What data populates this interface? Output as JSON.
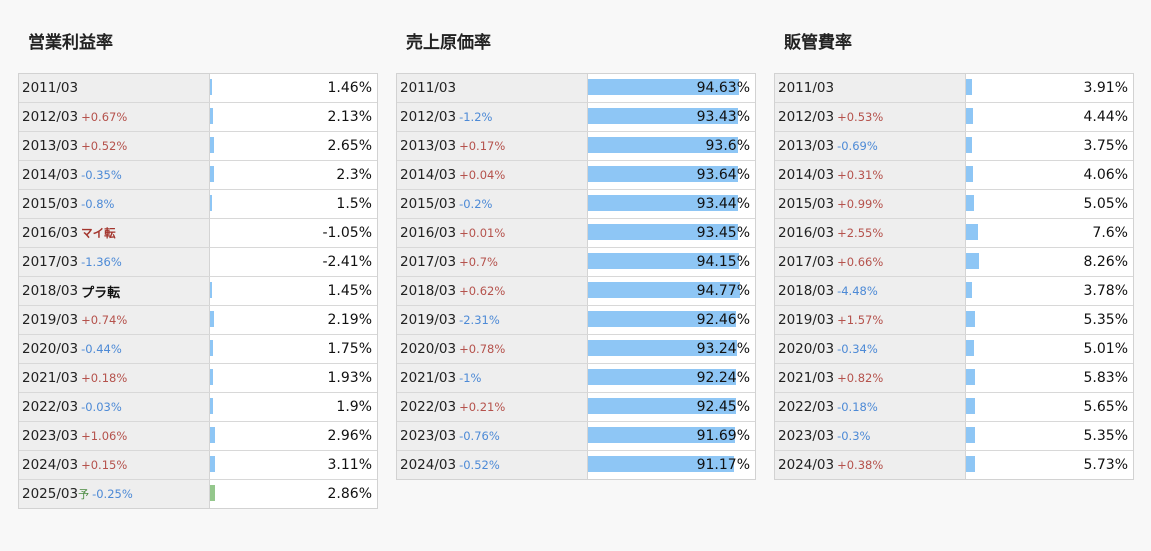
{
  "panels": [
    {
      "title": "営業利益率",
      "rows": [
        {
          "year": "2011/03",
          "change": "",
          "value": "1.46%",
          "ratio": 1.46
        },
        {
          "year": "2012/03",
          "change": "+0.67%",
          "value": "2.13%",
          "ratio": 2.13
        },
        {
          "year": "2013/03",
          "change": "+0.52%",
          "value": "2.65%",
          "ratio": 2.65
        },
        {
          "year": "2014/03",
          "change": "-0.35%",
          "value": "2.3%",
          "ratio": 2.3
        },
        {
          "year": "2015/03",
          "change": "-0.8%",
          "value": "1.5%",
          "ratio": 1.5
        },
        {
          "year": "2016/03",
          "change": "マイ転",
          "value": "-1.05%",
          "ratio": 0
        },
        {
          "year": "2017/03",
          "change": "-1.36%",
          "value": "-2.41%",
          "ratio": 0
        },
        {
          "year": "2018/03",
          "change": "プラ転",
          "value": "1.45%",
          "ratio": 1.45
        },
        {
          "year": "2019/03",
          "change": "+0.74%",
          "value": "2.19%",
          "ratio": 2.19
        },
        {
          "year": "2020/03",
          "change": "-0.44%",
          "value": "1.75%",
          "ratio": 1.75
        },
        {
          "year": "2021/03",
          "change": "+0.18%",
          "value": "1.93%",
          "ratio": 1.93
        },
        {
          "year": "2022/03",
          "change": "-0.03%",
          "value": "1.9%",
          "ratio": 1.9
        },
        {
          "year": "2023/03",
          "change": "+1.06%",
          "value": "2.96%",
          "ratio": 2.96
        },
        {
          "year": "2024/03",
          "change": "+0.15%",
          "value": "3.11%",
          "ratio": 3.11
        },
        {
          "year": "2025/03",
          "forecast_mark": "予",
          "change": "-0.25%",
          "value": "2.86%",
          "ratio": 2.86,
          "forecast": true
        }
      ]
    },
    {
      "title": "売上原価率",
      "rows": [
        {
          "year": "2011/03",
          "change": "",
          "value": "94.63%",
          "ratio": 94.63
        },
        {
          "year": "2012/03",
          "change": "-1.2%",
          "value": "93.43%",
          "ratio": 93.43
        },
        {
          "year": "2013/03",
          "change": "+0.17%",
          "value": "93.6%",
          "ratio": 93.6
        },
        {
          "year": "2014/03",
          "change": "+0.04%",
          "value": "93.64%",
          "ratio": 93.64
        },
        {
          "year": "2015/03",
          "change": "-0.2%",
          "value": "93.44%",
          "ratio": 93.44
        },
        {
          "year": "2016/03",
          "change": "+0.01%",
          "value": "93.45%",
          "ratio": 93.45
        },
        {
          "year": "2017/03",
          "change": "+0.7%",
          "value": "94.15%",
          "ratio": 94.15
        },
        {
          "year": "2018/03",
          "change": "+0.62%",
          "value": "94.77%",
          "ratio": 94.77
        },
        {
          "year": "2019/03",
          "change": "-2.31%",
          "value": "92.46%",
          "ratio": 92.46
        },
        {
          "year": "2020/03",
          "change": "+0.78%",
          "value": "93.24%",
          "ratio": 93.24
        },
        {
          "year": "2021/03",
          "change": "-1%",
          "value": "92.24%",
          "ratio": 92.24
        },
        {
          "year": "2022/03",
          "change": "+0.21%",
          "value": "92.45%",
          "ratio": 92.45
        },
        {
          "year": "2023/03",
          "change": "-0.76%",
          "value": "91.69%",
          "ratio": 91.69
        },
        {
          "year": "2024/03",
          "change": "-0.52%",
          "value": "91.17%",
          "ratio": 91.17
        }
      ]
    },
    {
      "title": "販管費率",
      "rows": [
        {
          "year": "2011/03",
          "change": "",
          "value": "3.91%",
          "ratio": 3.91
        },
        {
          "year": "2012/03",
          "change": "+0.53%",
          "value": "4.44%",
          "ratio": 4.44
        },
        {
          "year": "2013/03",
          "change": "-0.69%",
          "value": "3.75%",
          "ratio": 3.75
        },
        {
          "year": "2014/03",
          "change": "+0.31%",
          "value": "4.06%",
          "ratio": 4.06
        },
        {
          "year": "2015/03",
          "change": "+0.99%",
          "value": "5.05%",
          "ratio": 5.05
        },
        {
          "year": "2016/03",
          "change": "+2.55%",
          "value": "7.6%",
          "ratio": 7.6
        },
        {
          "year": "2017/03",
          "change": "+0.66%",
          "value": "8.26%",
          "ratio": 8.26
        },
        {
          "year": "2018/03",
          "change": "-4.48%",
          "value": "3.78%",
          "ratio": 3.78
        },
        {
          "year": "2019/03",
          "change": "+1.57%",
          "value": "5.35%",
          "ratio": 5.35
        },
        {
          "year": "2020/03",
          "change": "-0.34%",
          "value": "5.01%",
          "ratio": 5.01
        },
        {
          "year": "2021/03",
          "change": "+0.82%",
          "value": "5.83%",
          "ratio": 5.83
        },
        {
          "year": "2022/03",
          "change": "-0.18%",
          "value": "5.65%",
          "ratio": 5.65
        },
        {
          "year": "2023/03",
          "change": "-0.3%",
          "value": "5.35%",
          "ratio": 5.35
        },
        {
          "year": "2024/03",
          "change": "+0.38%",
          "value": "5.73%",
          "ratio": 5.73
        }
      ]
    }
  ],
  "colors": {
    "bar": "#8ec6f5",
    "forecast_bar": "#94c78c",
    "positive_change": "#b5524c",
    "negative_change": "#4d8ad6"
  }
}
